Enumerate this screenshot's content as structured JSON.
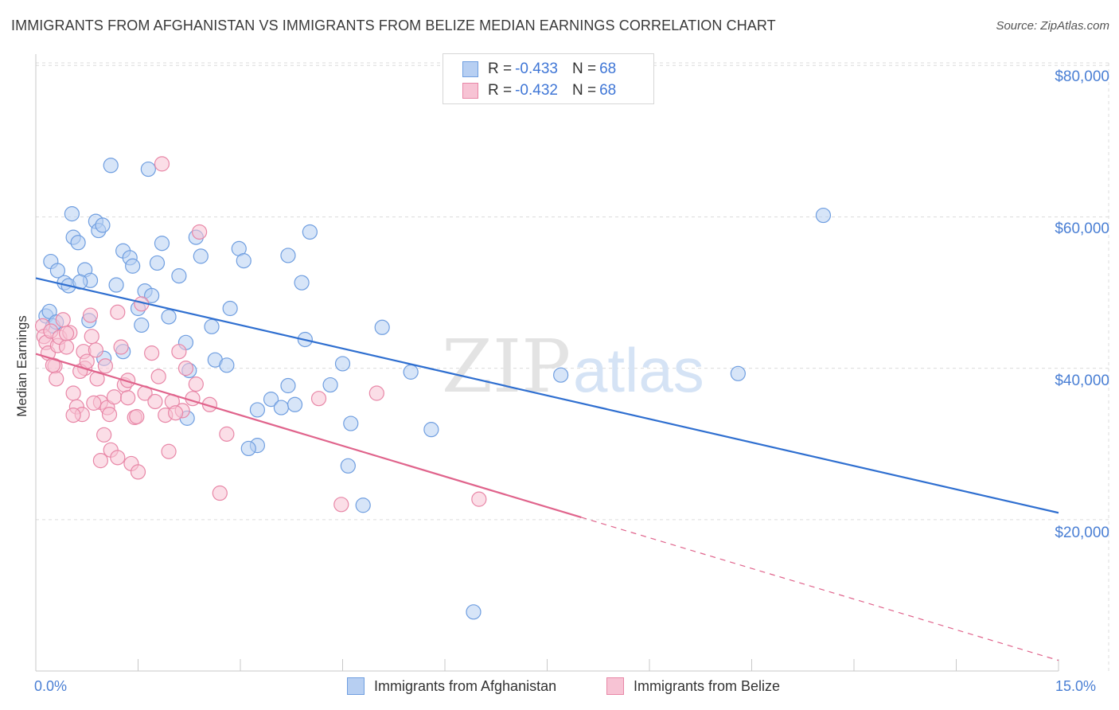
{
  "title": "IMMIGRANTS FROM AFGHANISTAN VS IMMIGRANTS FROM BELIZE MEDIAN EARNINGS CORRELATION CHART",
  "source": "Source: ZipAtlas.com",
  "watermark": {
    "zip": "ZIP",
    "atlas": "atlas"
  },
  "legend": {
    "rows": [
      {
        "r_label": "R = ",
        "r_value": "-0.433",
        "n_label": "N = ",
        "n_value": "68"
      },
      {
        "r_label": "R = ",
        "r_value": "-0.432",
        "n_label": "N = ",
        "n_value": "68"
      }
    ]
  },
  "colors": {
    "blue_fill": "#b7cff2",
    "blue_stroke": "#6f9ee0",
    "blue_line": "#2f6fd0",
    "pink_fill": "#f7c3d4",
    "pink_stroke": "#e887a7",
    "pink_line": "#e0648c",
    "axis_text": "#4a7fd4",
    "grid": "#dcdcdc"
  },
  "chart_data": {
    "type": "scatter",
    "title": "IMMIGRANTS FROM AFGHANISTAN VS IMMIGRANTS FROM BELIZE MEDIAN EARNINGS CORRELATION CHART",
    "xlabel": "",
    "ylabel": "Median Earnings",
    "xlim": [
      0,
      15
    ],
    "ylim": [
      0,
      81500
    ],
    "x_tick_labels": [
      "0.0%",
      "15.0%"
    ],
    "y_ticks": [
      20000,
      40000,
      60000,
      80000
    ],
    "y_tick_labels": [
      "$20,000",
      "$40,000",
      "$60,000",
      "$80,000"
    ],
    "grid": true,
    "legend_position": "top-center",
    "series": [
      {
        "name": "Immigrants from Afghanistan",
        "color": "#b7cff2",
        "trend": {
          "x": [
            0,
            15
          ],
          "y": [
            51900,
            20900
          ],
          "dashed_after": null
        },
        "points": [
          [
            0.15,
            46900
          ],
          [
            0.2,
            47500
          ],
          [
            0.25,
            45600
          ],
          [
            0.3,
            46100
          ],
          [
            0.22,
            54100
          ],
          [
            0.32,
            52900
          ],
          [
            0.42,
            51300
          ],
          [
            0.48,
            50900
          ],
          [
            0.53,
            60400
          ],
          [
            0.55,
            57300
          ],
          [
            0.62,
            56600
          ],
          [
            0.72,
            53000
          ],
          [
            0.8,
            51600
          ],
          [
            0.88,
            59400
          ],
          [
            0.92,
            58200
          ],
          [
            0.98,
            58900
          ],
          [
            1.1,
            66800
          ],
          [
            1.18,
            51000
          ],
          [
            1.28,
            55500
          ],
          [
            1.38,
            54600
          ],
          [
            1.42,
            53500
          ],
          [
            1.5,
            47900
          ],
          [
            1.55,
            45700
          ],
          [
            1.6,
            50200
          ],
          [
            1.7,
            49600
          ],
          [
            1.65,
            66300
          ],
          [
            1.78,
            53900
          ],
          [
            1.85,
            56500
          ],
          [
            1.95,
            46800
          ],
          [
            2.1,
            52200
          ],
          [
            2.2,
            43400
          ],
          [
            2.25,
            39700
          ],
          [
            2.35,
            57300
          ],
          [
            2.42,
            54800
          ],
          [
            2.58,
            45500
          ],
          [
            2.63,
            41100
          ],
          [
            2.8,
            40400
          ],
          [
            2.85,
            47900
          ],
          [
            2.98,
            55800
          ],
          [
            3.05,
            54200
          ],
          [
            3.25,
            34500
          ],
          [
            3.25,
            29800
          ],
          [
            3.12,
            29400
          ],
          [
            3.45,
            35900
          ],
          [
            3.6,
            34800
          ],
          [
            3.7,
            37700
          ],
          [
            3.8,
            35200
          ],
          [
            3.7,
            54900
          ],
          [
            3.9,
            51300
          ],
          [
            3.95,
            43800
          ],
          [
            4.02,
            58000
          ],
          [
            4.32,
            37800
          ],
          [
            4.5,
            40600
          ],
          [
            4.62,
            32700
          ],
          [
            4.58,
            27100
          ],
          [
            4.8,
            21900
          ],
          [
            5.08,
            45400
          ],
          [
            5.5,
            39500
          ],
          [
            5.8,
            31900
          ],
          [
            6.42,
            7800
          ],
          [
            7.7,
            39100
          ],
          [
            10.3,
            39300
          ],
          [
            11.55,
            60200
          ],
          [
            2.22,
            33400
          ],
          [
            1.28,
            42200
          ],
          [
            1.0,
            41300
          ],
          [
            0.65,
            51400
          ],
          [
            0.78,
            46300
          ]
        ]
      },
      {
        "name": "Immigrants from Belize",
        "color": "#f7c3d4",
        "trend": {
          "x": [
            0,
            15
          ],
          "y": [
            41900,
            1400
          ],
          "dashed_after": 8.0
        },
        "points": [
          [
            0.1,
            45600
          ],
          [
            0.12,
            44200
          ],
          [
            0.15,
            43400
          ],
          [
            0.18,
            42000
          ],
          [
            0.22,
            44900
          ],
          [
            0.28,
            40300
          ],
          [
            0.32,
            43000
          ],
          [
            0.35,
            44100
          ],
          [
            0.4,
            46400
          ],
          [
            0.45,
            42800
          ],
          [
            0.5,
            44700
          ],
          [
            0.55,
            36700
          ],
          [
            0.6,
            34900
          ],
          [
            0.68,
            33900
          ],
          [
            0.7,
            42200
          ],
          [
            0.72,
            40000
          ],
          [
            0.8,
            47000
          ],
          [
            0.82,
            44200
          ],
          [
            0.88,
            42400
          ],
          [
            0.9,
            38600
          ],
          [
            0.95,
            35500
          ],
          [
            1.0,
            31200
          ],
          [
            1.02,
            40300
          ],
          [
            1.05,
            34800
          ],
          [
            1.1,
            29200
          ],
          [
            1.15,
            36200
          ],
          [
            1.2,
            47400
          ],
          [
            1.25,
            42800
          ],
          [
            1.3,
            37800
          ],
          [
            1.35,
            38400
          ],
          [
            1.4,
            27400
          ],
          [
            1.45,
            33500
          ],
          [
            1.5,
            26300
          ],
          [
            1.55,
            48500
          ],
          [
            1.6,
            36700
          ],
          [
            1.7,
            42000
          ],
          [
            1.75,
            35600
          ],
          [
            1.8,
            38900
          ],
          [
            1.85,
            67000
          ],
          [
            1.9,
            33800
          ],
          [
            1.95,
            29000
          ],
          [
            2.0,
            35600
          ],
          [
            2.1,
            42200
          ],
          [
            2.15,
            34400
          ],
          [
            2.3,
            36000
          ],
          [
            2.35,
            37900
          ],
          [
            2.4,
            58000
          ],
          [
            2.55,
            35200
          ],
          [
            2.7,
            23500
          ],
          [
            2.8,
            31300
          ],
          [
            2.2,
            40000
          ],
          [
            0.25,
            40400
          ],
          [
            0.3,
            38600
          ],
          [
            0.45,
            44600
          ],
          [
            0.55,
            33800
          ],
          [
            0.65,
            39600
          ],
          [
            0.75,
            40900
          ],
          [
            0.85,
            35400
          ],
          [
            0.95,
            27800
          ],
          [
            1.08,
            33900
          ],
          [
            1.2,
            28200
          ],
          [
            1.35,
            36100
          ],
          [
            1.48,
            33600
          ],
          [
            4.48,
            22000
          ],
          [
            5.0,
            36700
          ],
          [
            4.15,
            36000
          ],
          [
            6.5,
            22700
          ],
          [
            2.05,
            34100
          ]
        ]
      }
    ]
  }
}
